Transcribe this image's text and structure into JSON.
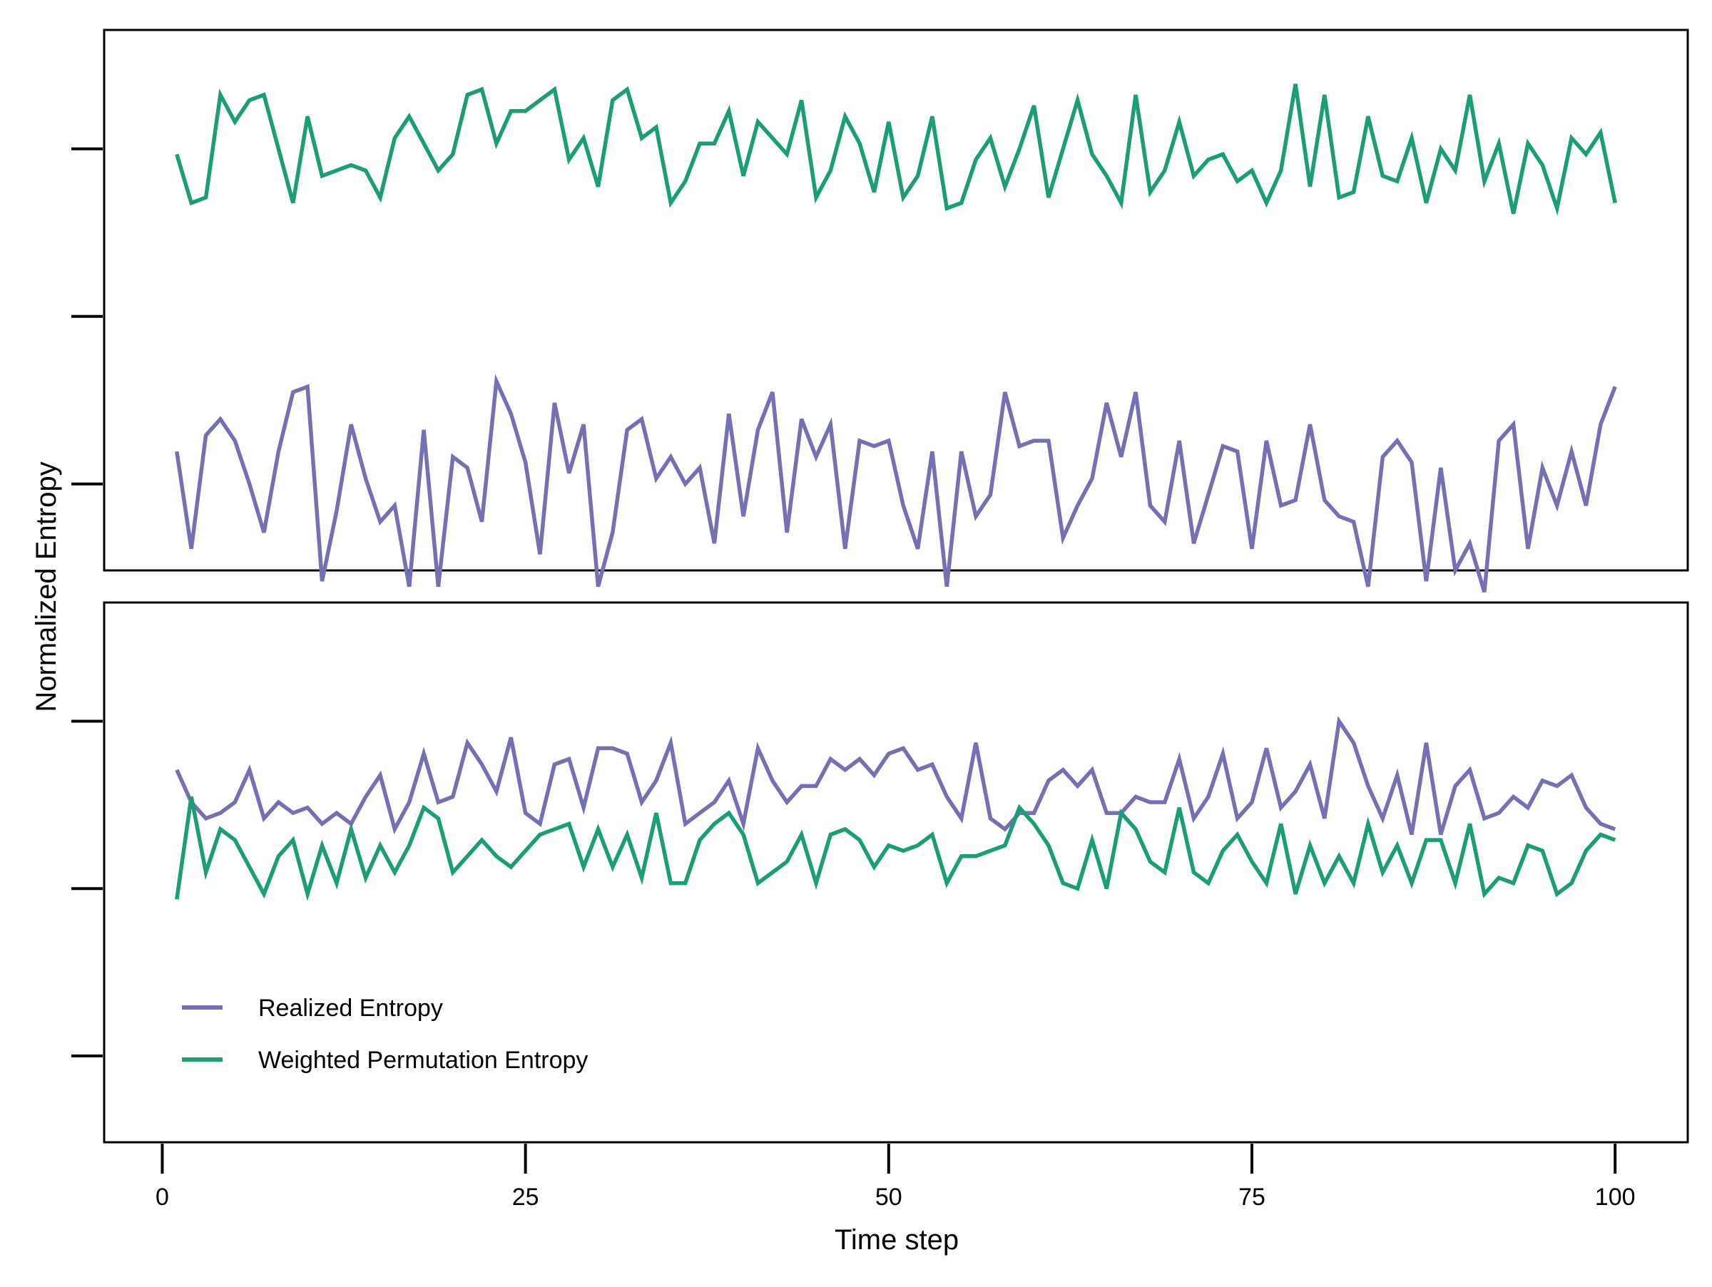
{
  "chart_data": {
    "type": "line",
    "ylabel": "Normalized Entropy",
    "xlabel": "Time step",
    "x_ticks": [
      0,
      25,
      50,
      75,
      100
    ],
    "xlim": [
      -4,
      105
    ],
    "ylim": [
      0,
      1
    ],
    "grid": false,
    "colors": {
      "realized": "#7570b3",
      "wpe": "#1b9e77"
    },
    "legend": {
      "placement": "bottom-left of lower panel",
      "entries": [
        "Realized Entropy",
        "Weighted Permutation Entropy"
      ]
    },
    "panels": [
      {
        "y_ticks": [
          0.16,
          0.47,
          0.78
        ],
        "series": [
          {
            "name": "Realized Entropy",
            "x": [
              1,
              2,
              3,
              4,
              5,
              6,
              7,
              8,
              9,
              10,
              11,
              12,
              13,
              14,
              15,
              16,
              17,
              18,
              19,
              20,
              21,
              22,
              23,
              24,
              25,
              26,
              27,
              28,
              29,
              30,
              31,
              32,
              33,
              34,
              35,
              36,
              37,
              38,
              39,
              40,
              41,
              42,
              43,
              44,
              45,
              46,
              47,
              48,
              49,
              50,
              51,
              52,
              53,
              54,
              55,
              56,
              57,
              58,
              59,
              60,
              61,
              62,
              63,
              64,
              65,
              66,
              67,
              68,
              69,
              70,
              71,
              72,
              73,
              74,
              75,
              76,
              77,
              78,
              79,
              80,
              81,
              82,
              83,
              84,
              85,
              86,
              87,
              88,
              89,
              90,
              91,
              92,
              93,
              94,
              95,
              96,
              97,
              98,
              99,
              100
            ],
            "values": [
              0.22,
              0.04,
              0.25,
              0.28,
              0.24,
              0.16,
              0.07,
              0.22,
              0.33,
              0.34,
              -0.02,
              0.11,
              0.27,
              0.17,
              0.09,
              0.12,
              -0.03,
              0.26,
              -0.03,
              0.21,
              0.19,
              0.09,
              0.35,
              0.29,
              0.2,
              0.03,
              0.31,
              0.18,
              0.27,
              -0.03,
              0.07,
              0.26,
              0.28,
              0.17,
              0.21,
              0.16,
              0.19,
              0.05,
              0.29,
              0.1,
              0.26,
              0.33,
              0.07,
              0.28,
              0.21,
              0.27,
              0.04,
              0.24,
              0.23,
              0.24,
              0.12,
              0.04,
              0.22,
              -0.03,
              0.22,
              0.1,
              0.14,
              0.33,
              0.23,
              0.24,
              0.24,
              0.06,
              0.12,
              0.17,
              0.31,
              0.21,
              0.33,
              0.12,
              0.09,
              0.24,
              0.05,
              0.14,
              0.23,
              0.22,
              0.04,
              0.24,
              0.12,
              0.13,
              0.27,
              0.13,
              0.1,
              0.09,
              -0.03,
              0.21,
              0.24,
              0.2,
              -0.02,
              0.19,
              0.0,
              0.05,
              -0.04,
              0.24,
              0.27,
              0.04,
              0.19,
              0.12,
              0.22,
              0.12,
              0.27,
              0.34
            ]
          },
          {
            "name": "Weighted Permutation Entropy",
            "x": [
              1,
              2,
              3,
              4,
              5,
              6,
              7,
              8,
              9,
              10,
              11,
              12,
              13,
              14,
              15,
              16,
              17,
              18,
              19,
              20,
              21,
              22,
              23,
              24,
              25,
              26,
              27,
              28,
              29,
              30,
              31,
              32,
              33,
              34,
              35,
              36,
              37,
              38,
              39,
              40,
              41,
              42,
              43,
              44,
              45,
              46,
              47,
              48,
              49,
              50,
              51,
              52,
              53,
              54,
              55,
              56,
              57,
              58,
              59,
              60,
              61,
              62,
              63,
              64,
              65,
              66,
              67,
              68,
              69,
              70,
              71,
              72,
              73,
              74,
              75,
              76,
              77,
              78,
              79,
              80,
              81,
              82,
              83,
              84,
              85,
              86,
              87,
              88,
              89,
              90,
              91,
              92,
              93,
              94,
              95,
              96,
              97,
              98,
              99,
              100
            ],
            "values": [
              0.77,
              0.68,
              0.69,
              0.88,
              0.83,
              0.87,
              0.88,
              0.78,
              0.68,
              0.84,
              0.73,
              0.74,
              0.75,
              0.74,
              0.69,
              0.8,
              0.84,
              0.79,
              0.74,
              0.77,
              0.88,
              0.89,
              0.79,
              0.85,
              0.85,
              0.87,
              0.89,
              0.76,
              0.8,
              0.71,
              0.87,
              0.89,
              0.8,
              0.82,
              0.68,
              0.72,
              0.79,
              0.79,
              0.85,
              0.73,
              0.83,
              0.8,
              0.77,
              0.87,
              0.69,
              0.74,
              0.84,
              0.79,
              0.7,
              0.83,
              0.69,
              0.73,
              0.84,
              0.67,
              0.68,
              0.76,
              0.8,
              0.71,
              0.78,
              0.86,
              0.69,
              0.78,
              0.87,
              0.77,
              0.73,
              0.68,
              0.88,
              0.7,
              0.74,
              0.83,
              0.73,
              0.76,
              0.77,
              0.72,
              0.74,
              0.68,
              0.74,
              0.9,
              0.71,
              0.88,
              0.69,
              0.7,
              0.84,
              0.73,
              0.72,
              0.8,
              0.68,
              0.78,
              0.74,
              0.88,
              0.72,
              0.79,
              0.66,
              0.79,
              0.75,
              0.67,
              0.8,
              0.77,
              0.81,
              0.68
            ]
          }
        ]
      },
      {
        "y_ticks": [
          0.16,
          0.47,
          0.78
        ],
        "series": [
          {
            "name": "Realized Entropy",
            "x": [
              1,
              2,
              3,
              4,
              5,
              6,
              7,
              8,
              9,
              10,
              11,
              12,
              13,
              14,
              15,
              16,
              17,
              18,
              19,
              20,
              21,
              22,
              23,
              24,
              25,
              26,
              27,
              28,
              29,
              30,
              31,
              32,
              33,
              34,
              35,
              36,
              37,
              38,
              39,
              40,
              41,
              42,
              43,
              44,
              45,
              46,
              47,
              48,
              49,
              50,
              51,
              52,
              53,
              54,
              55,
              56,
              57,
              58,
              59,
              60,
              61,
              62,
              63,
              64,
              65,
              66,
              67,
              68,
              69,
              70,
              71,
              72,
              73,
              74,
              75,
              76,
              77,
              78,
              79,
              80,
              81,
              82,
              83,
              84,
              85,
              86,
              87,
              88,
              89,
              90,
              91,
              92,
              93,
              94,
              95,
              96,
              97,
              98,
              99,
              100
            ],
            "values": [
              0.69,
              0.63,
              0.6,
              0.61,
              0.63,
              0.69,
              0.6,
              0.63,
              0.61,
              0.62,
              0.59,
              0.61,
              0.59,
              0.64,
              0.68,
              0.58,
              0.63,
              0.72,
              0.63,
              0.64,
              0.74,
              0.7,
              0.65,
              0.75,
              0.61,
              0.59,
              0.7,
              0.71,
              0.62,
              0.73,
              0.73,
              0.72,
              0.63,
              0.67,
              0.74,
              0.59,
              0.61,
              0.63,
              0.67,
              0.59,
              0.73,
              0.67,
              0.63,
              0.66,
              0.66,
              0.71,
              0.69,
              0.71,
              0.68,
              0.72,
              0.73,
              0.69,
              0.7,
              0.64,
              0.6,
              0.74,
              0.6,
              0.58,
              0.61,
              0.61,
              0.67,
              0.69,
              0.66,
              0.69,
              0.61,
              0.61,
              0.64,
              0.63,
              0.63,
              0.71,
              0.6,
              0.64,
              0.72,
              0.6,
              0.63,
              0.73,
              0.62,
              0.65,
              0.7,
              0.6,
              0.78,
              0.74,
              0.66,
              0.6,
              0.68,
              0.57,
              0.74,
              0.57,
              0.66,
              0.69,
              0.6,
              0.61,
              0.64,
              0.62,
              0.67,
              0.66,
              0.68,
              0.62,
              0.59,
              0.58
            ]
          },
          {
            "name": "Weighted Permutation Entropy",
            "x": [
              1,
              2,
              3,
              4,
              5,
              6,
              7,
              8,
              9,
              10,
              11,
              12,
              13,
              14,
              15,
              16,
              17,
              18,
              19,
              20,
              21,
              22,
              23,
              24,
              25,
              26,
              27,
              28,
              29,
              30,
              31,
              32,
              33,
              34,
              35,
              36,
              37,
              38,
              39,
              40,
              41,
              42,
              43,
              44,
              45,
              46,
              47,
              48,
              49,
              50,
              51,
              52,
              53,
              54,
              55,
              56,
              57,
              58,
              59,
              60,
              61,
              62,
              63,
              64,
              65,
              66,
              67,
              68,
              69,
              70,
              71,
              72,
              73,
              74,
              75,
              76,
              77,
              78,
              79,
              80,
              81,
              82,
              83,
              84,
              85,
              86,
              87,
              88,
              89,
              90,
              91,
              92,
              93,
              94,
              95,
              96,
              97,
              98,
              99,
              100
            ],
            "values": [
              0.45,
              0.64,
              0.5,
              0.58,
              0.56,
              0.51,
              0.46,
              0.53,
              0.56,
              0.46,
              0.55,
              0.48,
              0.58,
              0.49,
              0.55,
              0.5,
              0.55,
              0.62,
              0.6,
              0.5,
              0.53,
              0.56,
              0.53,
              0.51,
              0.54,
              0.57,
              0.58,
              0.59,
              0.51,
              0.58,
              0.51,
              0.57,
              0.49,
              0.61,
              0.48,
              0.48,
              0.56,
              0.59,
              0.61,
              0.57,
              0.48,
              0.5,
              0.52,
              0.57,
              0.48,
              0.57,
              0.58,
              0.56,
              0.51,
              0.55,
              0.54,
              0.55,
              0.57,
              0.48,
              0.53,
              0.53,
              0.54,
              0.55,
              0.62,
              0.59,
              0.55,
              0.48,
              0.47,
              0.56,
              0.47,
              0.61,
              0.58,
              0.52,
              0.5,
              0.62,
              0.5,
              0.48,
              0.54,
              0.57,
              0.52,
              0.48,
              0.59,
              0.46,
              0.55,
              0.48,
              0.53,
              0.48,
              0.59,
              0.5,
              0.55,
              0.48,
              0.56,
              0.56,
              0.48,
              0.59,
              0.46,
              0.49,
              0.48,
              0.55,
              0.54,
              0.46,
              0.48,
              0.54,
              0.57,
              0.56
            ]
          }
        ]
      }
    ]
  }
}
